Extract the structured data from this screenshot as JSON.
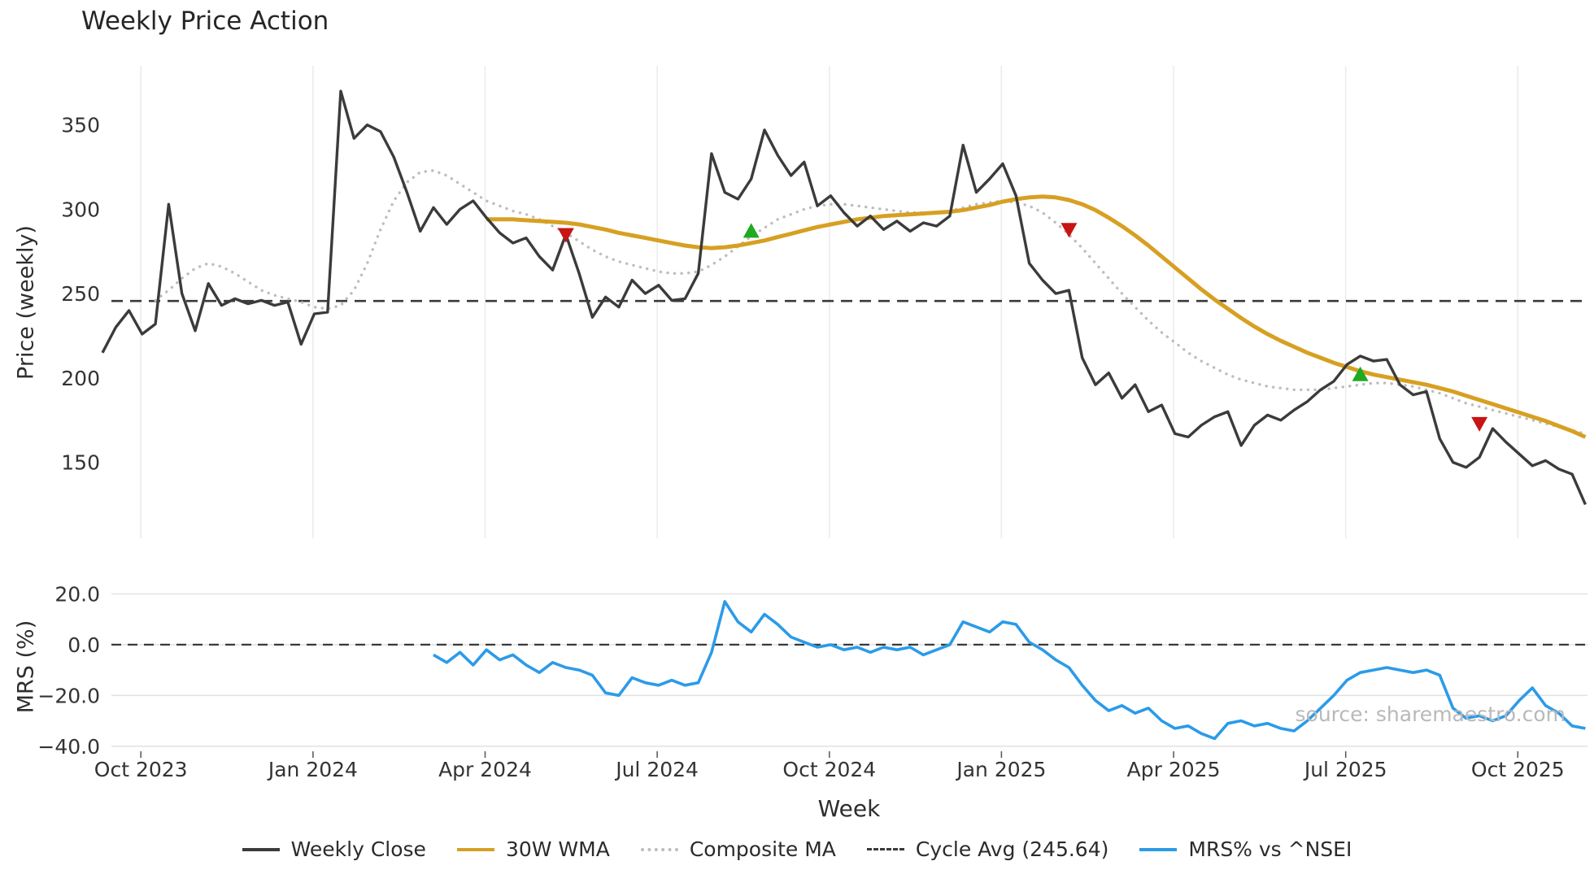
{
  "chart_data": {
    "type": "line",
    "title": "Weekly Price Action",
    "watermark": "source: sharemaestro.com",
    "x_axis": {
      "label": "Week",
      "ticks": [
        {
          "label": "Oct 2023",
          "week": 2.9
        },
        {
          "label": "Jan 2024",
          "week": 15.9
        },
        {
          "label": "Apr 2024",
          "week": 28.9
        },
        {
          "label": "Jul 2024",
          "week": 41.9
        },
        {
          "label": "Oct 2024",
          "week": 54.9
        },
        {
          "label": "Jan 2025",
          "week": 67.9
        },
        {
          "label": "Apr 2025",
          "week": 80.9
        },
        {
          "label": "Jul 2025",
          "week": 93.9
        },
        {
          "label": "Oct 2025",
          "week": 106.9
        }
      ],
      "total_weeks": 112
    },
    "top_panel": {
      "ylabel": "Price (weekly)",
      "ylim": [
        105,
        385
      ],
      "yticks": [
        {
          "value": 350,
          "label": "350"
        },
        {
          "value": 300,
          "label": "300"
        },
        {
          "value": 250,
          "label": "250"
        },
        {
          "value": 200,
          "label": "200"
        },
        {
          "value": 150,
          "label": "150"
        }
      ],
      "cycle_avg": 245.64,
      "series": [
        {
          "name": "Composite MA",
          "color": "#bdbdbd",
          "width": 3.4,
          "dash": "0.1 8.5",
          "start_week": 4,
          "values": [
            246,
            252,
            259,
            265,
            268,
            266,
            262,
            257,
            252,
            249,
            247,
            245,
            242,
            241,
            243,
            252,
            268,
            288,
            305,
            316,
            322,
            323,
            320,
            315,
            310,
            305,
            302,
            299,
            297,
            294,
            290,
            286,
            281,
            276,
            272,
            269,
            267,
            265,
            263,
            262,
            262,
            263,
            267,
            272,
            278,
            284,
            289,
            294,
            297,
            300,
            302,
            303,
            303,
            302,
            301,
            300,
            299,
            298,
            298,
            298,
            299,
            301,
            303,
            304,
            305,
            304,
            302,
            298,
            292,
            285,
            277,
            268,
            259,
            250,
            242,
            234,
            227,
            221,
            215,
            210,
            206,
            202,
            199,
            197,
            195,
            194,
            193,
            193,
            193,
            194,
            195,
            196,
            197,
            197,
            196,
            195,
            193,
            191,
            188,
            185,
            183,
            181,
            179,
            177,
            175,
            173,
            171,
            169,
            167
          ]
        },
        {
          "name": "30W WMA",
          "color": "#d7a022",
          "width": 5,
          "start_week": 29,
          "values": [
            294,
            294,
            294,
            293.5,
            293,
            292.5,
            292,
            291,
            289.5,
            288,
            286,
            284.5,
            283,
            281.5,
            280,
            278.5,
            277.5,
            277,
            277.5,
            278.5,
            280,
            281.5,
            283.5,
            285.5,
            287.5,
            289.5,
            291,
            292.5,
            294,
            295,
            296,
            296.5,
            297,
            297.5,
            298,
            298.5,
            299.5,
            301,
            302.5,
            304.5,
            306,
            307,
            307.5,
            307,
            305.5,
            303,
            299.5,
            295,
            290,
            284.5,
            278.5,
            272,
            265.5,
            259,
            252.5,
            246.5,
            241,
            235.5,
            230.5,
            226,
            222,
            218.5,
            215,
            212,
            209,
            206.5,
            204,
            202,
            200.5,
            199,
            197.5,
            196,
            194,
            192,
            189.5,
            187,
            184.5,
            182,
            179.5,
            177,
            174.5,
            171.5,
            168.5,
            165
          ]
        },
        {
          "name": "Weekly Close",
          "color": "#3b3b3b",
          "width": 3.4,
          "start_week": 0,
          "values": [
            215,
            230,
            240,
            226,
            232,
            303,
            250,
            228,
            256,
            243,
            247,
            244,
            246,
            243,
            245,
            220,
            238,
            239,
            370,
            342,
            350,
            346,
            331,
            310,
            287,
            301,
            291,
            300,
            305,
            295,
            286,
            280,
            283,
            272,
            264,
            285,
            262,
            236,
            248,
            242,
            258,
            250,
            255,
            246,
            247,
            262,
            333,
            310,
            306,
            318,
            347,
            332,
            320,
            328,
            302,
            308,
            298,
            290,
            296,
            288,
            293,
            287,
            292,
            290,
            296,
            338,
            310,
            318,
            327,
            308,
            268,
            258,
            250,
            252,
            212,
            196,
            203,
            188,
            196,
            180,
            184,
            167,
            165,
            172,
            177,
            180,
            160,
            172,
            178,
            175,
            181,
            186,
            193,
            198,
            208,
            213,
            210,
            211,
            196,
            190,
            192,
            164,
            150,
            147,
            153,
            170,
            162,
            155,
            148,
            151,
            146,
            143,
            125
          ]
        }
      ],
      "markers": {
        "sell": {
          "color": "#c81414",
          "shape": "triangle-down",
          "points": [
            {
              "week": 35,
              "price": 285
            },
            {
              "week": 73,
              "price": 288
            },
            {
              "week": 104,
              "price": 173
            }
          ]
        },
        "buy": {
          "color": "#1faa1f",
          "shape": "triangle-up",
          "points": [
            {
              "week": 49,
              "price": 287
            },
            {
              "week": 95,
              "price": 202
            }
          ]
        }
      }
    },
    "bottom_panel": {
      "ylabel": "MRS (%)",
      "ylim": [
        -42,
        24
      ],
      "yticks": [
        {
          "value": 20,
          "label": "20.0"
        },
        {
          "value": 0,
          "label": "0.0"
        },
        {
          "value": -20,
          "label": "−20.0"
        },
        {
          "value": -40,
          "label": "−40.0"
        }
      ],
      "zero_line": 0,
      "series": [
        {
          "name": "MRS% vs ^NSEI",
          "color": "#2b9be8",
          "width": 3.6,
          "start_week": 25,
          "values": [
            -4,
            -7,
            -3,
            -8,
            -2,
            -6,
            -4,
            -8,
            -11,
            -7,
            -9,
            -10,
            -12,
            -19,
            -20,
            -13,
            -15,
            -16,
            -14,
            -16,
            -15,
            -3,
            17,
            9,
            5,
            12,
            8,
            3,
            1,
            -1,
            0,
            -2,
            -1,
            -3,
            -1,
            -2,
            -1,
            -4,
            -2,
            0,
            9,
            7,
            5,
            9,
            8,
            1,
            -2,
            -6,
            -9,
            -16,
            -22,
            -26,
            -24,
            -27,
            -25,
            -30,
            -33,
            -32,
            -35,
            -37,
            -31,
            -30,
            -32,
            -31,
            -33,
            -34,
            -30,
            -25,
            -20,
            -14,
            -11,
            -10,
            -9,
            -10,
            -11,
            -10,
            -12,
            -25,
            -29,
            -28,
            -30,
            -28,
            -22,
            -17,
            -24,
            -27,
            -32,
            -33
          ]
        }
      ]
    },
    "legend": [
      {
        "label": "Weekly Close",
        "style": "solid",
        "color": "#3b3b3b"
      },
      {
        "label": "30W WMA",
        "style": "solid",
        "color": "#d7a022"
      },
      {
        "label": "Composite MA",
        "style": "dotted",
        "color": "#bdbdbd"
      },
      {
        "label": "Cycle Avg (245.64)",
        "style": "dashed",
        "color": "#3a3a3a"
      },
      {
        "label": "MRS% vs ^NSEI",
        "style": "solid",
        "color": "#2b9be8"
      }
    ],
    "colors": {
      "grid": "#ececec",
      "grid_bottom": "#e3e3e3",
      "cycle_avg_line": "#3a3a3a",
      "zero_line": "#3a3a3a",
      "tick_text": "#333333"
    }
  }
}
